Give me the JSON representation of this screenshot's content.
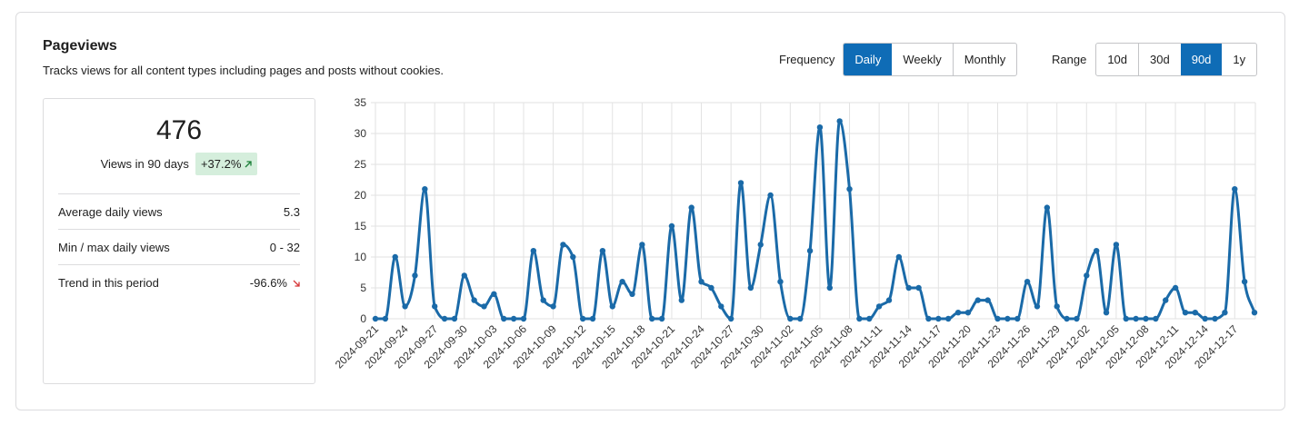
{
  "header": {
    "title": "Pageviews",
    "subtitle": "Tracks views for all content types including pages and posts without cookies."
  },
  "controls": {
    "frequency": {
      "label": "Frequency",
      "options": [
        {
          "label": "Daily",
          "active": true
        },
        {
          "label": "Weekly",
          "active": false
        },
        {
          "label": "Monthly",
          "active": false
        }
      ]
    },
    "range": {
      "label": "Range",
      "options": [
        {
          "label": "10d",
          "active": false
        },
        {
          "label": "30d",
          "active": false
        },
        {
          "label": "90d",
          "active": true
        },
        {
          "label": "1y",
          "active": false
        }
      ]
    }
  },
  "summary": {
    "total": "476",
    "caption": "Views in 90 days",
    "change": "+37.2%",
    "rows": [
      [
        "Average daily views",
        "5.3"
      ],
      [
        "Min / max daily views",
        "0 - 32"
      ],
      [
        "Trend in this period",
        "-96.6%"
      ]
    ]
  },
  "chart_data": {
    "type": "line",
    "color": "#1a6aa8",
    "smooth": true,
    "markers": true,
    "grid": true,
    "categories": [
      "2024-09-21",
      null,
      null,
      "2024-09-24",
      null,
      null,
      "2024-09-27",
      null,
      null,
      "2024-09-30",
      null,
      null,
      "2024-10-03",
      null,
      null,
      "2024-10-06",
      null,
      null,
      "2024-10-09",
      null,
      null,
      "2024-10-12",
      null,
      null,
      "2024-10-15",
      null,
      null,
      "2024-10-18",
      null,
      null,
      "2024-10-21",
      null,
      null,
      "2024-10-24",
      null,
      null,
      "2024-10-27",
      null,
      null,
      "2024-10-30",
      null,
      null,
      "2024-11-02",
      null,
      null,
      "2024-11-05",
      null,
      null,
      "2024-11-08",
      null,
      null,
      "2024-11-11",
      null,
      null,
      "2024-11-14",
      null,
      null,
      "2024-11-17",
      null,
      null,
      "2024-11-20",
      null,
      null,
      "2024-11-23",
      null,
      null,
      "2024-11-26",
      null,
      null,
      "2024-11-29",
      null,
      null,
      "2024-12-02",
      null,
      null,
      "2024-12-05",
      null,
      null,
      "2024-12-08",
      null,
      null,
      "2024-12-11",
      null,
      null,
      "2024-12-14",
      null,
      null,
      "2024-12-17",
      null,
      null
    ],
    "values": [
      0,
      0,
      10,
      2,
      7,
      21,
      2,
      0,
      0,
      7,
      3,
      2,
      4,
      0,
      0,
      0,
      11,
      3,
      2,
      12,
      10,
      0,
      0,
      11,
      2,
      6,
      4,
      12,
      0,
      0,
      15,
      3,
      18,
      6,
      5,
      2,
      0,
      22,
      5,
      12,
      20,
      6,
      0,
      0,
      11,
      31,
      5,
      32,
      21,
      0,
      0,
      2,
      3,
      10,
      5,
      5,
      0,
      0,
      0,
      1,
      1,
      3,
      3,
      0,
      0,
      0,
      6,
      2,
      18,
      2,
      0,
      0,
      7,
      11,
      1,
      12,
      0,
      0,
      0,
      0,
      3,
      5,
      1,
      1,
      0,
      0,
      1,
      21,
      6,
      1
    ],
    "ylim": [
      0,
      35
    ],
    "yticks": [
      0,
      5,
      10,
      15,
      20,
      25,
      30,
      35
    ]
  }
}
